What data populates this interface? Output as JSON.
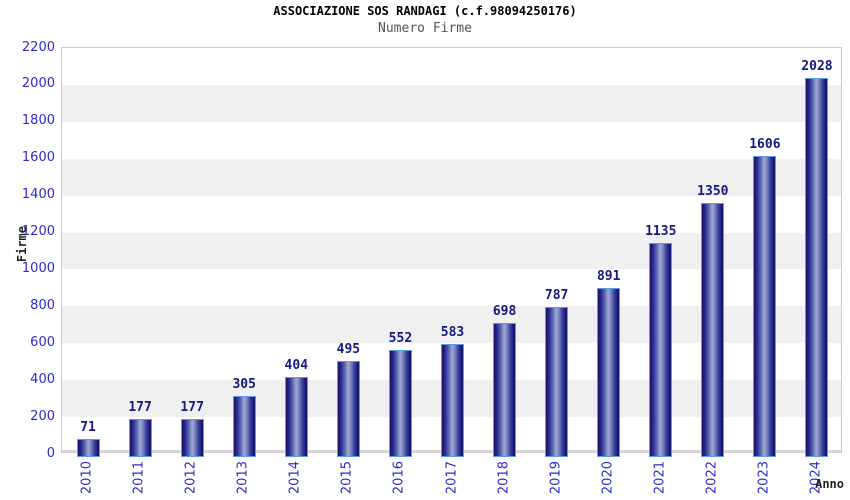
{
  "header": {
    "title": "ASSOCIAZIONE SOS RANDAGI (c.f.98094250176)",
    "subtitle": "Numero Firme"
  },
  "chart_data": {
    "type": "bar",
    "title": "ASSOCIAZIONE SOS RANDAGI (c.f.98094250176)",
    "subtitle": "Numero Firme",
    "categories": [
      "2010",
      "2011",
      "2012",
      "2013",
      "2014",
      "2015",
      "2016",
      "2017",
      "2018",
      "2019",
      "2020",
      "2021",
      "2022",
      "2023",
      "2024"
    ],
    "values": [
      71,
      177,
      177,
      305,
      404,
      495,
      552,
      583,
      698,
      787,
      891,
      1135,
      1350,
      1606,
      2028
    ],
    "xlabel": "Anno",
    "ylabel": "Firme",
    "ylim": [
      0,
      2200
    ],
    "ytick_step": 200,
    "yticks": [
      0,
      200,
      400,
      600,
      800,
      1000,
      1200,
      1400,
      1600,
      1800,
      2000,
      2200
    ],
    "grid": "alternating horizontal bands",
    "legend": "none",
    "colors": {
      "bar_edge": "#5b9ce8",
      "bar_dark": "#15156e",
      "bar_light": "#9da7d8",
      "value_label": "#17177d",
      "axis_tick_label": "#2b2bd0",
      "band_gray": "#f0f0f0",
      "band_white": "#ffffff",
      "title": "#000000",
      "subtitle": "#555555",
      "axis_title": "#222222"
    }
  }
}
